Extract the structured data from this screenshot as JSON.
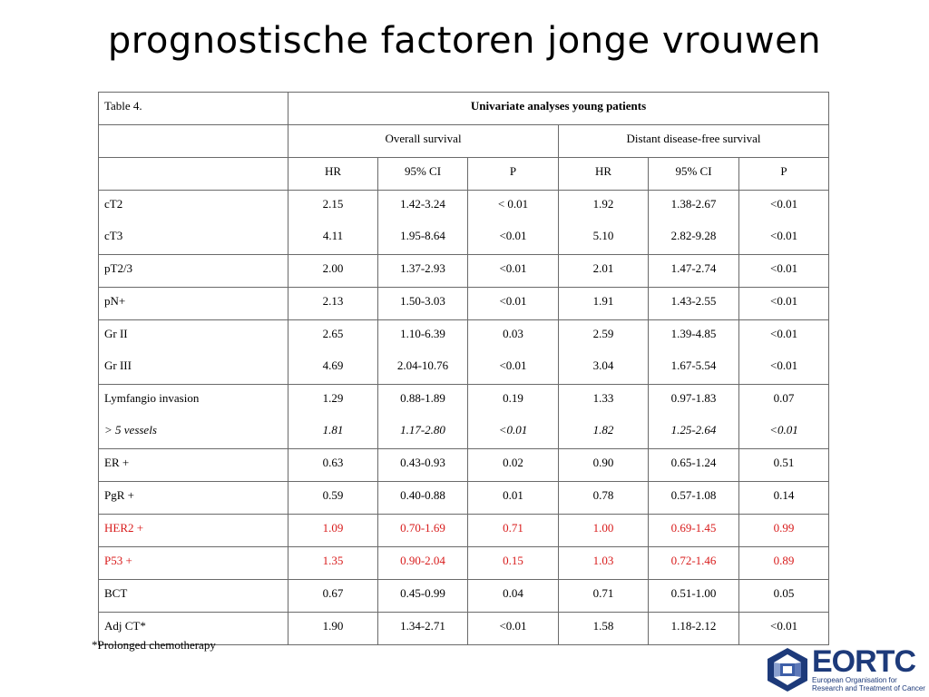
{
  "title": "prognostische factoren jonge vrouwen",
  "table": {
    "caption": "Table 4.",
    "heading": "Univariate analyses young patients",
    "group1": "Overall survival",
    "group2": "Distant disease-free survival",
    "cols": [
      "HR",
      "95% CI",
      "P",
      "HR",
      "95% CI",
      "P"
    ],
    "rows": [
      {
        "lines": [
          {
            "label": "cT2",
            "vals": [
              "2.15",
              "1.42-3.24",
              "< 0.01",
              "1.92",
              "1.38-2.67",
              "<0.01"
            ]
          },
          {
            "label": "cT3",
            "vals": [
              "4.11",
              "1.95-8.64",
              "<0.01",
              "5.10",
              "2.82-9.28",
              "<0.01"
            ]
          }
        ]
      },
      {
        "lines": [
          {
            "label": "pT2/3",
            "vals": [
              "2.00",
              "1.37-2.93",
              "<0.01",
              "2.01",
              "1.47-2.74",
              "<0.01"
            ]
          }
        ]
      },
      {
        "lines": [
          {
            "label": "pN+",
            "vals": [
              "2.13",
              "1.50-3.03",
              "<0.01",
              "1.91",
              "1.43-2.55",
              "<0.01"
            ]
          }
        ]
      },
      {
        "lines": [
          {
            "label": "Gr II",
            "vals": [
              "2.65",
              "1.10-6.39",
              "0.03",
              "2.59",
              "1.39-4.85",
              "<0.01"
            ]
          },
          {
            "label": "Gr III",
            "vals": [
              "4.69",
              "2.04-10.76",
              "<0.01",
              "3.04",
              "1.67-5.54",
              "<0.01"
            ]
          }
        ]
      },
      {
        "lines": [
          {
            "label": "Lymfangio invasion",
            "vals": [
              "1.29",
              "0.88-1.89",
              "0.19",
              "1.33",
              "0.97-1.83",
              "0.07"
            ]
          },
          {
            "label": "> 5 vessels",
            "italic": true,
            "vals": [
              "1.81",
              "1.17-2.80",
              "<0.01",
              "1.82",
              "1.25-2.64",
              "<0.01"
            ]
          }
        ]
      },
      {
        "lines": [
          {
            "label": "ER +",
            "vals": [
              "0.63",
              "0.43-0.93",
              "0.02",
              "0.90",
              "0.65-1.24",
              "0.51"
            ]
          }
        ]
      },
      {
        "lines": [
          {
            "label": "PgR +",
            "vals": [
              "0.59",
              "0.40-0.88",
              "0.01",
              "0.78",
              "0.57-1.08",
              "0.14"
            ]
          }
        ]
      },
      {
        "red": true,
        "lines": [
          {
            "label": "HER2 +",
            "vals": [
              "1.09",
              "0.70-1.69",
              "0.71",
              "1.00",
              "0.69-1.45",
              "0.99"
            ]
          }
        ]
      },
      {
        "red": true,
        "lines": [
          {
            "label": "P53 +",
            "vals": [
              "1.35",
              "0.90-2.04",
              "0.15",
              "1.03",
              "0.72-1.46",
              "0.89"
            ]
          }
        ]
      },
      {
        "lines": [
          {
            "label": "BCT",
            "vals": [
              "0.67",
              "0.45-0.99",
              "0.04",
              "0.71",
              "0.51-1.00",
              "0.05"
            ]
          }
        ]
      },
      {
        "lines": [
          {
            "label": "Adj CT*",
            "vals": [
              "1.90",
              "1.34-2.71",
              "<0.01",
              "1.58",
              "1.18-2.12",
              "<0.01"
            ]
          }
        ]
      }
    ],
    "highlight_color": "#d81b1b"
  },
  "footnote": "*Prolonged chemotherapy",
  "logo": {
    "word": "EORTC",
    "subtitle": "European Organisation for Research and Treatment of Cancer",
    "color": "#1d3a7a"
  }
}
